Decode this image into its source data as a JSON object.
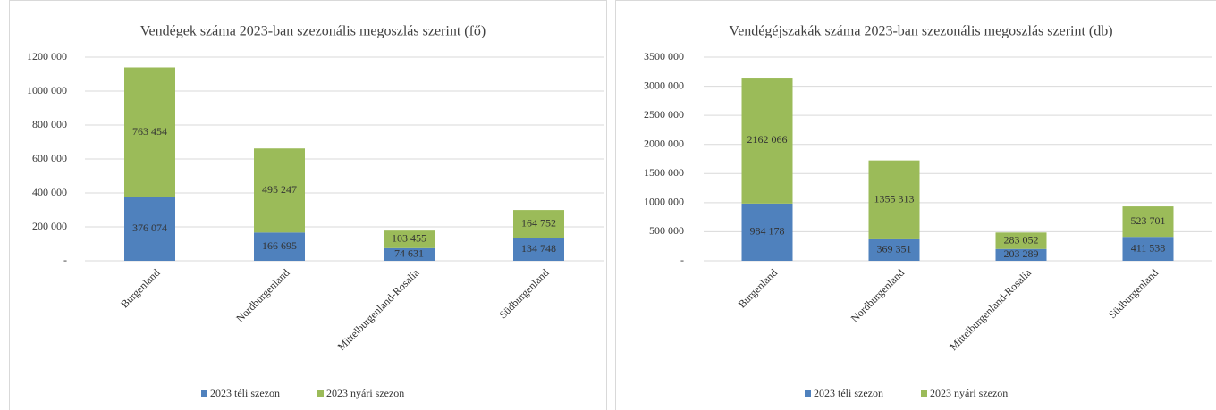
{
  "chart_data": [
    {
      "type": "bar",
      "stacked": true,
      "title": "Vendégek száma 2023-ban szezonális megoszlás szerint (fő)",
      "categories": [
        "Burgenland",
        "Nordburgenland",
        "Mittelburgenland-Rosalia",
        "Südburgenland"
      ],
      "series": [
        {
          "name": "2023 téli szezon",
          "color": "#4f81bd",
          "values": [
            376074,
            166695,
            74631,
            134748
          ],
          "value_labels": [
            "376 074",
            "166 695",
            "74 631",
            "134 748"
          ]
        },
        {
          "name": "2023 nyári szezon",
          "color": "#9bbb59",
          "values": [
            763454,
            495247,
            103455,
            164752
          ],
          "value_labels": [
            "763 454",
            "495 247",
            "103 455",
            "164 752"
          ]
        }
      ],
      "ylim": [
        0,
        1200000
      ],
      "yticks": [
        {
          "value": 0,
          "label": "-"
        },
        {
          "value": 200000,
          "label": "200 000"
        },
        {
          "value": 400000,
          "label": "400 000"
        },
        {
          "value": 600000,
          "label": "600 000"
        },
        {
          "value": 800000,
          "label": "800 000"
        },
        {
          "value": 1000000,
          "label": "1000 000"
        },
        {
          "value": 1200000,
          "label": "1200 000"
        }
      ],
      "grid": true,
      "legend": "bottom"
    },
    {
      "type": "bar",
      "stacked": true,
      "title": "Vendégéjszakák száma 2023-ban szezonális megoszlás szerint (db)",
      "categories": [
        "Burgenland",
        "Nordburgenland",
        "Mittelburgenland-Rosalia",
        "Südburgenland"
      ],
      "series": [
        {
          "name": "2023 téli szezon",
          "color": "#4f81bd",
          "values": [
            984178,
            369351,
            203289,
            411538
          ],
          "value_labels": [
            "984 178",
            "369 351",
            "203 289",
            "411 538"
          ]
        },
        {
          "name": "2023 nyári szezon",
          "color": "#9bbb59",
          "values": [
            2162066,
            1355313,
            283052,
            523701
          ],
          "value_labels": [
            "2162 066",
            "1355 313",
            "283 052",
            "523 701"
          ]
        }
      ],
      "ylim": [
        0,
        3500000
      ],
      "yticks": [
        {
          "value": 0,
          "label": "-"
        },
        {
          "value": 500000,
          "label": "500 000"
        },
        {
          "value": 1000000,
          "label": "1000 000"
        },
        {
          "value": 1500000,
          "label": "1500 000"
        },
        {
          "value": 2000000,
          "label": "2000 000"
        },
        {
          "value": 2500000,
          "label": "2500 000"
        },
        {
          "value": 3000000,
          "label": "3000 000"
        },
        {
          "value": 3500000,
          "label": "3500 000"
        }
      ],
      "grid": true,
      "legend": "bottom"
    }
  ]
}
